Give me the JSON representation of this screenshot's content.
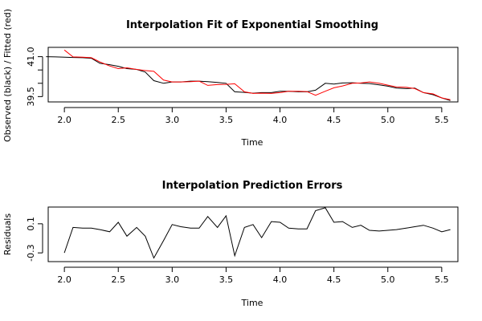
{
  "chart_data": [
    {
      "type": "line",
      "title": "Interpolation Fit of Exponential Smoothing",
      "xlabel": "Time",
      "ylabel": "Observed (black) / Fitted (red)",
      "xlim": [
        1.85,
        5.65
      ],
      "ylim": [
        39.3,
        41.35
      ],
      "x_ticks": [
        2.0,
        2.5,
        3.0,
        3.5,
        4.0,
        4.5,
        5.0,
        5.5
      ],
      "x_tick_labels": [
        "2.0",
        "2.5",
        "3.0",
        "3.5",
        "4.0",
        "4.5",
        "5.0",
        "5.5"
      ],
      "y_ticks": [
        39.5,
        40.0,
        40.5,
        41.0
      ],
      "y_tick_labels": [
        "39.5",
        "",
        "",
        "41.0"
      ],
      "x": [
        1.83,
        1.92,
        2.0,
        2.08,
        2.17,
        2.25,
        2.33,
        2.42,
        2.5,
        2.58,
        2.67,
        2.75,
        2.83,
        2.92,
        3.0,
        3.08,
        3.17,
        3.25,
        3.33,
        3.42,
        3.5,
        3.58,
        3.67,
        3.75,
        3.83,
        3.92,
        4.0,
        4.08,
        4.17,
        4.25,
        4.33,
        4.42,
        4.5,
        4.58,
        4.67,
        4.75,
        4.83,
        4.92,
        5.0,
        5.08,
        5.17,
        5.25,
        5.33,
        5.42,
        5.5,
        5.58
      ],
      "series": [
        {
          "name": "Observed",
          "color": "#000000",
          "values": [
            41.0,
            40.99,
            40.98,
            40.97,
            40.96,
            40.94,
            40.75,
            40.7,
            40.64,
            40.55,
            40.52,
            40.42,
            40.1,
            40.0,
            40.05,
            40.05,
            40.08,
            40.08,
            40.06,
            40.03,
            40.0,
            39.68,
            39.66,
            39.63,
            39.65,
            39.65,
            39.7,
            39.7,
            39.68,
            39.68,
            39.74,
            40.0,
            39.97,
            40.01,
            40.02,
            40.0,
            39.99,
            39.94,
            39.89,
            39.82,
            39.8,
            39.82,
            39.65,
            39.57,
            39.45,
            39.35
          ]
        },
        {
          "name": "Fitted",
          "color": "#ff0000",
          "values": [
            null,
            null,
            41.25,
            40.99,
            40.98,
            40.96,
            40.8,
            40.65,
            40.55,
            40.58,
            40.52,
            40.48,
            40.45,
            40.12,
            40.05,
            40.05,
            40.06,
            40.08,
            39.92,
            39.95,
            39.96,
            39.98,
            39.68,
            39.62,
            39.63,
            39.62,
            39.65,
            39.7,
            39.7,
            39.69,
            39.55,
            39.7,
            39.83,
            39.9,
            40.0,
            40.01,
            40.05,
            40.0,
            39.93,
            39.86,
            39.85,
            39.8,
            39.65,
            39.6,
            39.45,
            39.38
          ]
        }
      ]
    },
    {
      "type": "line",
      "title": "Interpolation Prediction Errors",
      "xlabel": "Time",
      "ylabel": "Residuals",
      "xlim": [
        1.85,
        5.65
      ],
      "ylim": [
        -0.42,
        0.33
      ],
      "x_ticks": [
        2.0,
        2.5,
        3.0,
        3.5,
        4.0,
        4.5,
        5.0,
        5.5
      ],
      "x_tick_labels": [
        "2.0",
        "2.5",
        "3.0",
        "3.5",
        "4.0",
        "4.5",
        "5.0",
        "5.5"
      ],
      "y_ticks": [
        -0.3,
        0.1
      ],
      "y_tick_labels": [
        "-0.3",
        "0.1"
      ],
      "x": [
        2.0,
        2.08,
        2.17,
        2.25,
        2.33,
        2.42,
        2.5,
        2.58,
        2.67,
        2.75,
        2.83,
        2.92,
        3.0,
        3.08,
        3.17,
        3.25,
        3.33,
        3.42,
        3.5,
        3.58,
        3.67,
        3.75,
        3.83,
        3.92,
        4.0,
        4.08,
        4.17,
        4.25,
        4.33,
        4.42,
        4.5,
        4.58,
        4.67,
        4.75,
        4.83,
        4.92,
        5.0,
        5.08,
        5.17,
        5.25,
        5.33,
        5.42,
        5.5,
        5.58
      ],
      "series": [
        {
          "name": "Residuals",
          "color": "#000000",
          "values": [
            -0.3,
            0.05,
            0.04,
            0.04,
            0.02,
            -0.01,
            0.12,
            -0.07,
            0.05,
            -0.07,
            -0.37,
            -0.13,
            0.09,
            0.06,
            0.04,
            0.04,
            0.2,
            0.05,
            0.21,
            -0.34,
            0.05,
            0.09,
            -0.09,
            0.13,
            0.12,
            0.04,
            0.03,
            0.03,
            0.28,
            0.32,
            0.12,
            0.13,
            0.05,
            0.08,
            0.01,
            0.0,
            0.01,
            0.02,
            0.04,
            0.06,
            0.08,
            0.04,
            -0.01,
            0.02
          ]
        }
      ]
    }
  ]
}
